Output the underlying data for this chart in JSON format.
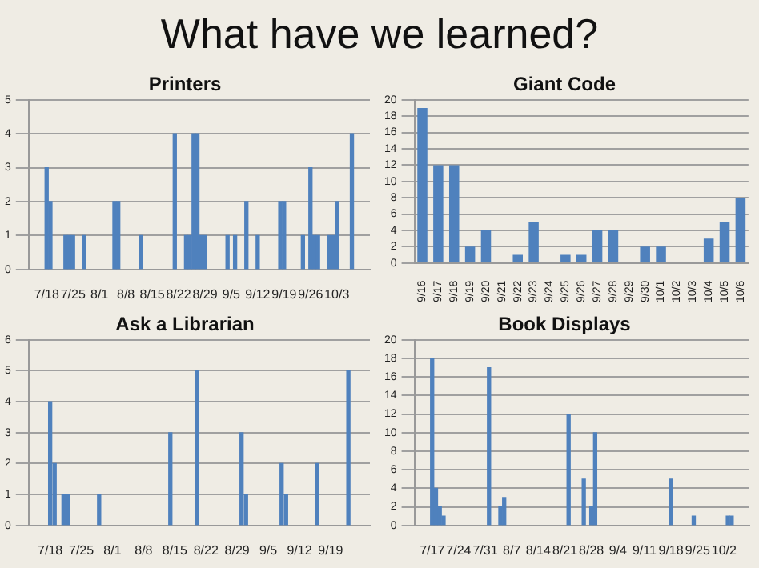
{
  "chart_data": [
    {
      "type": "bar",
      "title": "Printers",
      "annotations": [
        "What have we learned?"
      ],
      "color": "#4f81bd",
      "grid": "y",
      "x": [
        "--07-18",
        "--07-19",
        "--07-23",
        "--07-24",
        "--07-25",
        "--07-28",
        "--08-05",
        "--08-06",
        "--08-12",
        "--08-21",
        "--08-24",
        "--08-25",
        "--08-26",
        "--08-27",
        "--08-28",
        "--08-29",
        "--09-04",
        "--09-06",
        "--09-09",
        "--09-12",
        "--09-18",
        "--09-19",
        "--09-24",
        "--09-26",
        "--09-27",
        "--09-28",
        "--10-01",
        "--10-02",
        "--10-03",
        "--10-07"
      ],
      "values": [
        3,
        2,
        1,
        1,
        1,
        1,
        2,
        2,
        1,
        4,
        1,
        1,
        4,
        4,
        1,
        1,
        1,
        1,
        2,
        1,
        2,
        2,
        1,
        3,
        1,
        1,
        1,
        1,
        2,
        4
      ],
      "xlim": [
        "--07-17",
        "--10-08"
      ],
      "xticks": [
        {
          "value": "--07-18",
          "label": "7/18"
        },
        {
          "value": "--07-25",
          "label": "7/25"
        },
        {
          "value": "--08-01",
          "label": "8/1"
        },
        {
          "value": "--08-08",
          "label": "8/8"
        },
        {
          "value": "--08-15",
          "label": "8/15"
        },
        {
          "value": "--08-22",
          "label": "8/22"
        },
        {
          "value": "--08-29",
          "label": "8/29"
        },
        {
          "value": "--09-05",
          "label": "9/5"
        },
        {
          "value": "--09-12",
          "label": "9/12"
        },
        {
          "value": "--09-19",
          "label": "9/19"
        },
        {
          "value": "--09-26",
          "label": "9/26"
        },
        {
          "value": "--10-03",
          "label": "10/3"
        }
      ],
      "ylim": [
        0,
        5
      ],
      "yticks": [
        0,
        1,
        2,
        3,
        4,
        5
      ]
    },
    {
      "type": "bar",
      "title": "Giant Code",
      "color": "#4f81bd",
      "grid": "y",
      "categories": [
        "9/16",
        "9/17",
        "9/18",
        "9/19",
        "9/20",
        "9/21",
        "9/22",
        "9/23",
        "9/24",
        "9/25",
        "9/26",
        "9/27",
        "9/28",
        "9/29",
        "9/30",
        "10/1",
        "10/2",
        "10/3",
        "10/4",
        "10/5",
        "10/6"
      ],
      "values": [
        19,
        12,
        12,
        2,
        4,
        0,
        1,
        5,
        0,
        1,
        1,
        4,
        4,
        0,
        2,
        2,
        0,
        0,
        3,
        5,
        8
      ],
      "ylim": [
        0,
        20
      ],
      "yticks": [
        0,
        2,
        4,
        6,
        8,
        10,
        12,
        14,
        16,
        18,
        20
      ]
    },
    {
      "type": "bar",
      "title": "Ask a Librarian",
      "color": "#4f81bd",
      "grid": "y",
      "x": [
        "--07-18",
        "--07-19",
        "--07-21",
        "--07-22",
        "--07-29",
        "--08-14",
        "--08-20",
        "--08-30",
        "--08-31",
        "--09-08",
        "--09-09",
        "--09-16",
        "--09-23"
      ],
      "values": [
        4,
        2,
        1,
        1,
        1,
        3,
        5,
        3,
        1,
        2,
        1,
        2,
        5
      ],
      "xlim": [
        "--07-17",
        "--09-24"
      ],
      "xticks": [
        {
          "value": "--07-18",
          "label": "7/18"
        },
        {
          "value": "--07-25",
          "label": "7/25"
        },
        {
          "value": "--08-01",
          "label": "8/1"
        },
        {
          "value": "--08-08",
          "label": "8/8"
        },
        {
          "value": "--08-15",
          "label": "8/15"
        },
        {
          "value": "--08-22",
          "label": "8/22"
        },
        {
          "value": "--08-29",
          "label": "8/29"
        },
        {
          "value": "--09-05",
          "label": "9/5"
        },
        {
          "value": "--09-12",
          "label": "9/12"
        },
        {
          "value": "--09-19",
          "label": "9/19"
        }
      ],
      "ylim": [
        0,
        6
      ],
      "yticks": [
        0,
        1,
        2,
        3,
        4,
        5,
        6
      ]
    },
    {
      "type": "bar",
      "title": "Book Displays",
      "color": "#4f81bd",
      "grid": "y",
      "x": [
        "--07-17",
        "--07-18",
        "--07-19",
        "--07-20",
        "--08-01",
        "--08-04",
        "--08-05",
        "--08-22",
        "--08-26",
        "--08-28",
        "--08-29",
        "--09-18",
        "--09-24",
        "--10-03",
        "--10-04"
      ],
      "values": [
        18,
        4,
        2,
        1,
        17,
        2,
        3,
        12,
        5,
        2,
        10,
        5,
        1,
        1,
        1
      ],
      "xlim": [
        "--07-16",
        "--10-05"
      ],
      "xticks": [
        {
          "value": "--07-17",
          "label": "7/17"
        },
        {
          "value": "--07-24",
          "label": "7/24"
        },
        {
          "value": "--07-31",
          "label": "7/31"
        },
        {
          "value": "--08-07",
          "label": "8/7"
        },
        {
          "value": "--08-14",
          "label": "8/14"
        },
        {
          "value": "--08-21",
          "label": "8/21"
        },
        {
          "value": "--08-28",
          "label": "8/28"
        },
        {
          "value": "--09-04",
          "label": "9/4"
        },
        {
          "value": "--09-11",
          "label": "9/11"
        },
        {
          "value": "--09-18",
          "label": "9/18"
        },
        {
          "value": "--09-25",
          "label": "9/25"
        },
        {
          "value": "--10-02",
          "label": "10/2"
        }
      ],
      "ylim": [
        0,
        20
      ],
      "yticks": [
        0,
        2,
        4,
        6,
        8,
        10,
        12,
        14,
        16,
        18,
        20
      ]
    }
  ]
}
